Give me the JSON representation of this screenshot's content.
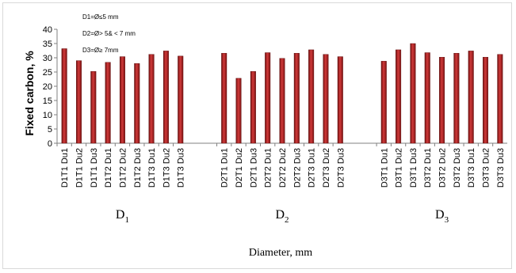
{
  "chart_data": {
    "type": "bar",
    "ylabel": "Fixed carbon, %",
    "xlabel": "Diameter, mm",
    "ylim": [
      0,
      40
    ],
    "yticks": [
      0,
      5,
      10,
      15,
      20,
      25,
      30,
      35,
      40
    ],
    "grid": false,
    "bar_color": "#b22222",
    "legend_text": [
      "D1=Ø≤5 mm",
      "D2=Ø> 5& < 7 mm",
      "D3=Ø≥ 7mm"
    ],
    "groups": [
      {
        "label": "D",
        "sub": "1",
        "categories": [
          "D1T1 Du1",
          "D1T1 Du2",
          "D1T1 Du3",
          "D1T2 Du1",
          "D1T2 Du2",
          "D1T2 Du3",
          "D1T3 Du1",
          "D1T3 Du2",
          "D1T3 Du3"
        ],
        "values": [
          33.2,
          29.0,
          25.2,
          28.4,
          30.4,
          28.0,
          31.2,
          32.4,
          30.6
        ]
      },
      {
        "label": "D",
        "sub": "2",
        "categories": [
          "D2T1 Du1",
          "D2T1 Du2",
          "D2T1 Du3",
          "D2T2 Du1",
          "D2T2 Du2",
          "D2T2 Du3",
          "D2T3 Du1",
          "D2T3 Du2",
          "D2T3 Du3"
        ],
        "values": [
          31.6,
          22.8,
          25.2,
          31.8,
          29.8,
          31.6,
          32.8,
          31.2,
          30.4
        ]
      },
      {
        "label": "D",
        "sub": "3",
        "categories": [
          "D3T1 Du1",
          "D3T1 Du2",
          "D3T1 Du3",
          "D3T2 Du1",
          "D3T2 Du2",
          "D3T2 Du3",
          "D3T3 Du1",
          "D3T3 Du2",
          "D3T3 Du3"
        ],
        "values": [
          28.8,
          32.8,
          35.0,
          31.8,
          30.2,
          31.6,
          32.4,
          30.2,
          31.2
        ]
      }
    ]
  }
}
